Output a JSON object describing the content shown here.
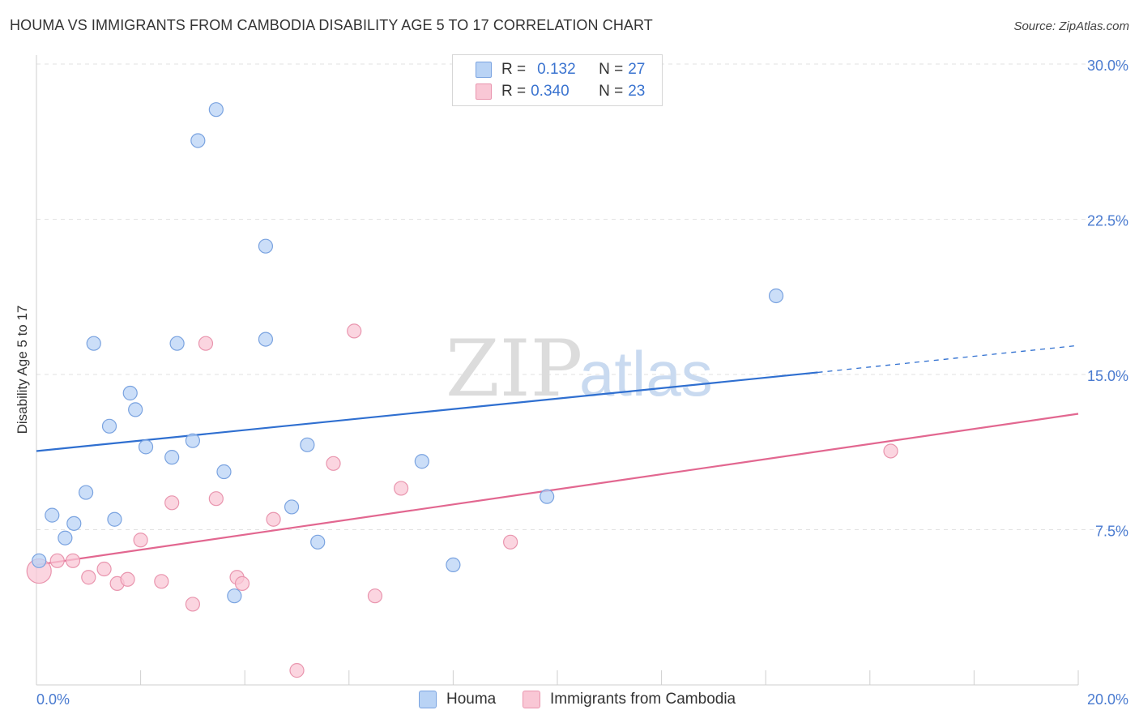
{
  "title": "HOUMA VS IMMIGRANTS FROM CAMBODIA DISABILITY AGE 5 TO 17 CORRELATION CHART",
  "source": "Source: ZipAtlas.com",
  "watermark": {
    "zip": "ZIP",
    "atlas": "atlas"
  },
  "legend": {
    "rows": [
      {
        "r_label": "R =",
        "r_value": "0.132",
        "n_label": "N =",
        "n_value": "27"
      },
      {
        "r_label": "R =",
        "r_value": "0.340",
        "n_label": "N =",
        "n_value": "23"
      }
    ]
  },
  "colors": {
    "houma_fill": "#b9d3f5",
    "houma_stroke": "#7aa3e0",
    "houma_line": "#2f6fd0",
    "cambodia_fill": "#f9c7d5",
    "cambodia_stroke": "#e995ae",
    "cambodia_line": "#e26790",
    "grid": "#e2e2e2",
    "axis_text": "#4a7bd0"
  },
  "chart_data": {
    "type": "scatter",
    "title": "HOUMA VS IMMIGRANTS FROM CAMBODIA DISABILITY AGE 5 TO 17 CORRELATION CHART",
    "xlabel": "",
    "ylabel": "Disability Age 5 to 17",
    "xlim": [
      0,
      20
    ],
    "ylim": [
      0,
      31
    ],
    "x_tick_labels": [
      "0.0%",
      "20.0%"
    ],
    "y_ticks": [
      7.5,
      15.0,
      22.5,
      30.0
    ],
    "y_tick_labels": [
      "7.5%",
      "15.0%",
      "22.5%",
      "30.0%"
    ],
    "grid": true,
    "legend_position": "top-center",
    "series": [
      {
        "name": "Houma",
        "r": 0.132,
        "n": 27,
        "points": [
          [
            0.05,
            6.0
          ],
          [
            0.3,
            8.2
          ],
          [
            0.55,
            7.1
          ],
          [
            0.72,
            7.8
          ],
          [
            0.95,
            9.3
          ],
          [
            1.1,
            16.5
          ],
          [
            1.4,
            12.5
          ],
          [
            1.5,
            8.0
          ],
          [
            1.8,
            14.1
          ],
          [
            1.9,
            13.3
          ],
          [
            2.1,
            11.5
          ],
          [
            2.6,
            11.0
          ],
          [
            2.7,
            16.5
          ],
          [
            3.0,
            11.8
          ],
          [
            3.1,
            26.3
          ],
          [
            3.45,
            27.8
          ],
          [
            3.6,
            10.3
          ],
          [
            3.8,
            4.3
          ],
          [
            4.4,
            21.2
          ],
          [
            4.4,
            16.7
          ],
          [
            4.9,
            8.6
          ],
          [
            5.4,
            6.9
          ],
          [
            5.2,
            11.6
          ],
          [
            7.4,
            10.8
          ],
          [
            8.0,
            5.8
          ],
          [
            9.8,
            9.1
          ],
          [
            14.2,
            18.8
          ]
        ],
        "trend": {
          "x0": 0,
          "y0": 11.3,
          "x1": 15.0,
          "y1": 15.1,
          "dashed_to_x": 20,
          "dashed_to_y": 16.4
        }
      },
      {
        "name": "Immigrants from Cambodia",
        "r": 0.34,
        "n": 23,
        "points": [
          [
            0.05,
            5.5
          ],
          [
            0.4,
            6.0
          ],
          [
            0.7,
            6.0
          ],
          [
            1.0,
            5.2
          ],
          [
            1.3,
            5.6
          ],
          [
            1.55,
            4.9
          ],
          [
            1.75,
            5.1
          ],
          [
            2.0,
            7.0
          ],
          [
            2.4,
            5.0
          ],
          [
            2.6,
            8.8
          ],
          [
            3.0,
            3.9
          ],
          [
            3.25,
            16.5
          ],
          [
            3.45,
            9.0
          ],
          [
            3.85,
            5.2
          ],
          [
            3.95,
            4.9
          ],
          [
            4.55,
            8.0
          ],
          [
            5.0,
            0.7
          ],
          [
            5.7,
            10.7
          ],
          [
            6.1,
            17.1
          ],
          [
            6.5,
            4.3
          ],
          [
            7.0,
            9.5
          ],
          [
            9.1,
            6.9
          ],
          [
            16.4,
            11.3
          ]
        ],
        "trend": {
          "x0": 0,
          "y0": 5.8,
          "x1": 20,
          "y1": 13.1
        }
      }
    ]
  },
  "bottom_legend": [
    {
      "label": "Houma"
    },
    {
      "label": "Immigrants from Cambodia"
    }
  ]
}
